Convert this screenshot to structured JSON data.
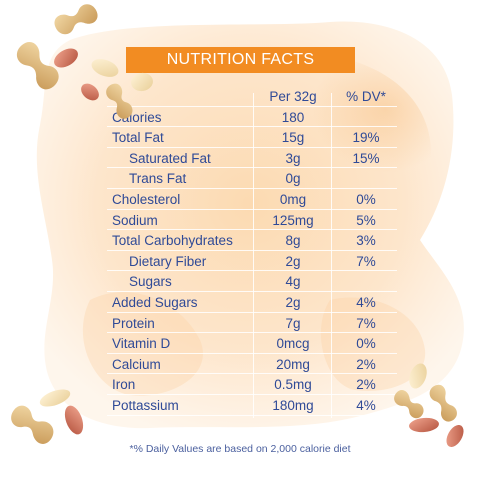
{
  "title": "NUTRITION FACTS",
  "headers": {
    "name": "",
    "amount": "Per 32g",
    "dv": "% DV*"
  },
  "rows": [
    {
      "name": "Calories",
      "amount": "180",
      "dv": "",
      "indent": false
    },
    {
      "name": "Total Fat",
      "amount": "15g",
      "dv": "19%",
      "indent": false
    },
    {
      "name": "Saturated Fat",
      "amount": "3g",
      "dv": "15%",
      "indent": true
    },
    {
      "name": "Trans Fat",
      "amount": "0g",
      "dv": "",
      "indent": true
    },
    {
      "name": "Cholesterol",
      "amount": "0mg",
      "dv": "0%",
      "indent": false
    },
    {
      "name": "Sodium",
      "amount": "125mg",
      "dv": "5%",
      "indent": false
    },
    {
      "name": "Total Carbohydrates",
      "amount": "8g",
      "dv": "3%",
      "indent": false
    },
    {
      "name": "Dietary Fiber",
      "amount": "2g",
      "dv": "7%",
      "indent": true
    },
    {
      "name": "Sugars",
      "amount": "4g",
      "dv": "",
      "indent": true
    },
    {
      "name": "Added Sugars",
      "amount": "2g",
      "dv": "4%",
      "indent": false
    },
    {
      "name": "Protein",
      "amount": "7g",
      "dv": "7%",
      "indent": false
    },
    {
      "name": "Vitamin D",
      "amount": "0mcg",
      "dv": "0%",
      "indent": false
    },
    {
      "name": "Calcium",
      "amount": "20mg",
      "dv": "2%",
      "indent": false
    },
    {
      "name": "Iron",
      "amount": "0.5mg",
      "dv": "2%",
      "indent": false
    },
    {
      "name": "Pottassium",
      "amount": "180mg",
      "dv": "4%",
      "indent": false
    }
  ],
  "footnote": "*% Daily Values are based on 2,000 calorie diet",
  "colors": {
    "accent": "#f28c22",
    "text": "#2f4a97",
    "wash": "#fbd9b0"
  },
  "decorations": [
    "peanut-shell-icon",
    "peanut-kernel-icon"
  ]
}
